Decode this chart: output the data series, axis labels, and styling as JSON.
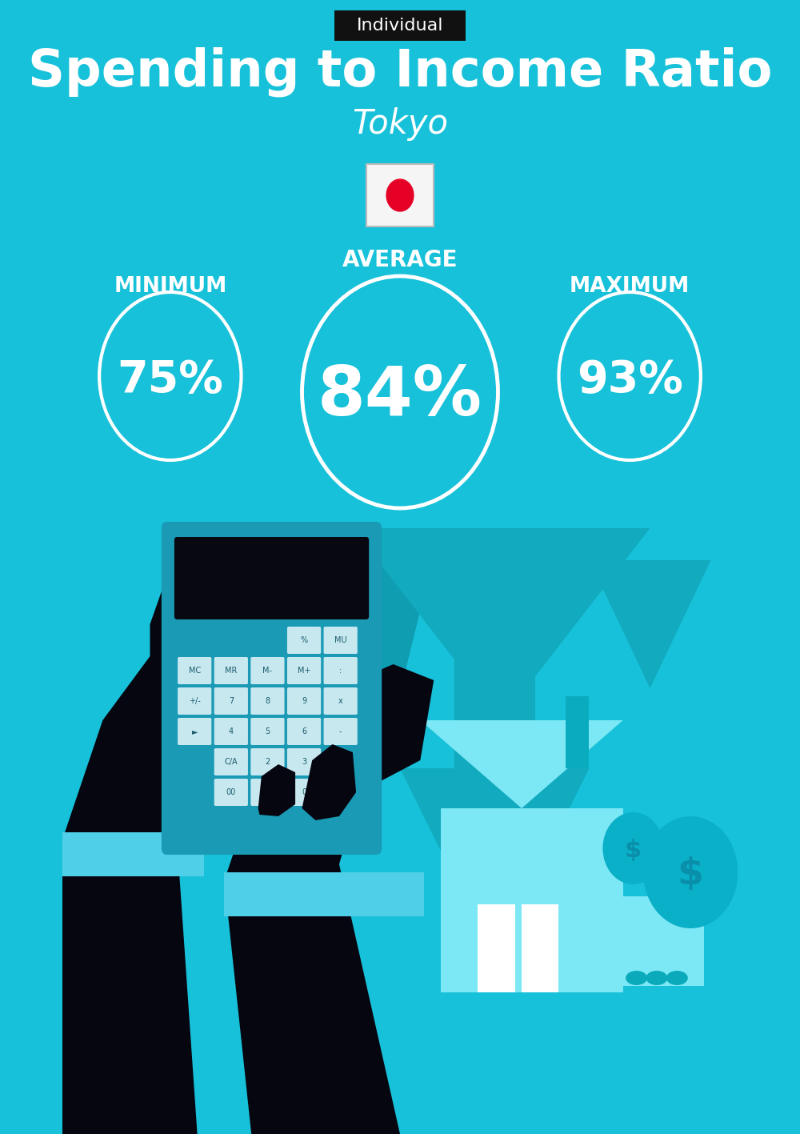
{
  "bg_color": "#17C1D9",
  "title": "Spending to Income Ratio",
  "subtitle": "Tokyo",
  "tag_label": "Individual",
  "tag_bg": "#111111",
  "tag_text_color": "#ffffff",
  "title_color": "#ffffff",
  "subtitle_color": "#ffffff",
  "min_label": "MINIMUM",
  "avg_label": "AVERAGE",
  "max_label": "MAXIMUM",
  "min_value": "75%",
  "avg_value": "84%",
  "max_value": "93%",
  "circle_edge": "#ffffff",
  "circle_text": "#ffffff",
  "label_color": "#ffffff",
  "flag_bg": "#f5f5f5",
  "flag_dot": "#e60026",
  "bg_shape1": "#12AABF",
  "bg_shape2": "#0F9DB2",
  "house_color": "#0EC4DC",
  "house_light": "#7DE8F5",
  "door_color": "#B8F0FA",
  "chimney_color": "#0AABBF",
  "money_color": "#0EC0D8",
  "money_light": "#7DE8F5",
  "bag_color": "#0AAFC8",
  "calc_body": "#1B9AB5",
  "calc_screen": "#080810",
  "btn_color": "#C8E8F0",
  "btn_text": "#1a5a6a",
  "hand_color": "#060610",
  "cuff_color": "#50D0E8",
  "hand2_color": "#080812"
}
